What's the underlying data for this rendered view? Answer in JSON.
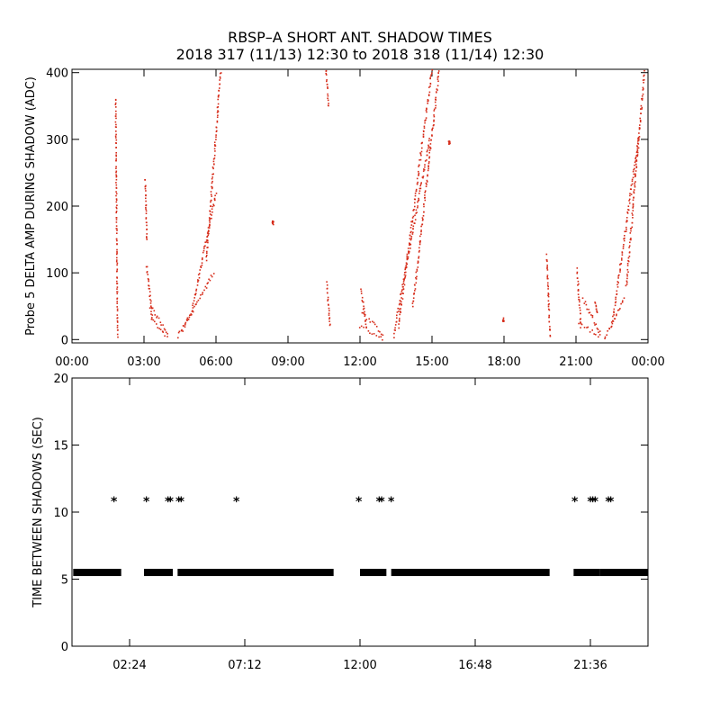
{
  "title_line1": "RBSP–A SHORT ANT. SHADOW TIMES",
  "title_line2": "2018 317 (11/13) 12:30 to 2018 318 (11/14) 12:30",
  "chart_data": [
    {
      "type": "scatter",
      "ylabel": "Probe 5 DELTA AMP DURING SHADOW (ADC)",
      "xlabel": "",
      "xlim": [
        0,
        24
      ],
      "ylim": [
        -5,
        405
      ],
      "xticks": [
        0,
        3,
        6,
        9,
        12,
        15,
        18,
        21,
        24
      ],
      "xtick_labels": [
        "00:00",
        "03:00",
        "06:00",
        "09:00",
        "12:00",
        "15:00",
        "18:00",
        "21:00",
        "00:00"
      ],
      "yticks": [
        0,
        100,
        200,
        300,
        400
      ],
      "ytick_labels": [
        "0",
        "100",
        "200",
        "300",
        "400"
      ],
      "color": "#d62c1a",
      "segments": [
        {
          "x0": 1.82,
          "x1": 1.9,
          "y0": 360,
          "y1": 5,
          "spread": 0.03
        },
        {
          "x0": 3.05,
          "x1": 3.12,
          "y0": 240,
          "y1": 150,
          "spread": 0.03
        },
        {
          "x0": 3.12,
          "x1": 3.35,
          "y0": 110,
          "y1": 30,
          "spread": 0.05
        },
        {
          "x0": 3.3,
          "x1": 3.95,
          "y0": 30,
          "y1": 5,
          "spread": 0.05
        },
        {
          "x0": 3.25,
          "x1": 4.0,
          "y0": 50,
          "y1": 10,
          "spread": 0.05
        },
        {
          "x0": 4.4,
          "x1": 5.0,
          "y0": 5,
          "y1": 40,
          "spread": 0.05
        },
        {
          "x0": 4.6,
          "x1": 5.9,
          "y0": 15,
          "y1": 100,
          "spread": 0.05
        },
        {
          "x0": 5.0,
          "x1": 6.0,
          "y0": 45,
          "y1": 220,
          "spread": 0.05
        },
        {
          "x0": 5.6,
          "x1": 6.2,
          "y0": 120,
          "y1": 405,
          "spread": 0.05
        },
        {
          "x0": 8.35,
          "x1": 8.4,
          "y0": 175,
          "y1": 175,
          "spread": 0.02
        },
        {
          "x0": 10.58,
          "x1": 10.7,
          "y0": 405,
          "y1": 350,
          "spread": 0.03
        },
        {
          "x0": 10.62,
          "x1": 10.75,
          "y0": 85,
          "y1": 20,
          "spread": 0.03
        },
        {
          "x0": 12.05,
          "x1": 12.25,
          "y0": 75,
          "y1": 20,
          "spread": 0.04
        },
        {
          "x0": 12.0,
          "x1": 12.95,
          "y0": 20,
          "y1": 2,
          "spread": 0.05
        },
        {
          "x0": 12.1,
          "x1": 12.95,
          "y0": 40,
          "y1": 8,
          "spread": 0.05
        },
        {
          "x0": 13.4,
          "x1": 14.9,
          "y0": 5,
          "y1": 300,
          "spread": 0.05
        },
        {
          "x0": 13.6,
          "x1": 15.0,
          "y0": 20,
          "y1": 405,
          "spread": 0.05
        },
        {
          "x0": 14.2,
          "x1": 15.3,
          "y0": 50,
          "y1": 405,
          "spread": 0.05
        },
        {
          "x0": 15.7,
          "x1": 15.75,
          "y0": 295,
          "y1": 295,
          "spread": 0.02
        },
        {
          "x0": 17.95,
          "x1": 18.0,
          "y0": 30,
          "y1": 30,
          "spread": 0.02
        },
        {
          "x0": 19.78,
          "x1": 19.92,
          "y0": 125,
          "y1": 5,
          "spread": 0.03
        },
        {
          "x0": 21.05,
          "x1": 21.2,
          "y0": 105,
          "y1": 20,
          "spread": 0.04
        },
        {
          "x0": 21.1,
          "x1": 22.0,
          "y0": 25,
          "y1": 5,
          "spread": 0.05
        },
        {
          "x0": 21.3,
          "x1": 22.0,
          "y0": 60,
          "y1": 10,
          "spread": 0.05
        },
        {
          "x0": 21.8,
          "x1": 21.9,
          "y0": 55,
          "y1": 40,
          "spread": 0.03
        },
        {
          "x0": 22.2,
          "x1": 23.0,
          "y0": 2,
          "y1": 60,
          "spread": 0.05
        },
        {
          "x0": 22.5,
          "x1": 23.6,
          "y0": 20,
          "y1": 300,
          "spread": 0.05
        },
        {
          "x0": 23.1,
          "x1": 23.85,
          "y0": 80,
          "y1": 400,
          "spread": 0.05
        }
      ]
    },
    {
      "type": "scatter",
      "ylabel": "TIME BETWEEN SHADOWS (SEC)",
      "xlabel": "",
      "xlim": [
        0,
        24
      ],
      "ylim": [
        0,
        20
      ],
      "xticks": [
        2.4,
        7.2,
        12.0,
        16.8,
        21.6
      ],
      "xtick_labels": [
        "02:24",
        "07:12",
        "12:00",
        "16:48",
        "21:36"
      ],
      "yticks": [
        0,
        5,
        10,
        15,
        20
      ],
      "ytick_labels": [
        "0",
        "5",
        "10",
        "15",
        "20"
      ],
      "color": "#000000",
      "marker": "*",
      "bands": [
        {
          "x0": 0.05,
          "x1": 2.05,
          "y": 5.5
        },
        {
          "x0": 3.0,
          "x1": 4.2,
          "y": 5.5
        },
        {
          "x0": 4.4,
          "x1": 10.9,
          "y": 5.5
        },
        {
          "x0": 12.0,
          "x1": 13.1,
          "y": 5.5
        },
        {
          "x0": 13.3,
          "x1": 19.9,
          "y": 5.5
        },
        {
          "x0": 20.9,
          "x1": 22.0,
          "y": 5.5
        },
        {
          "x0": 22.0,
          "x1": 24.0,
          "y": 5.5
        }
      ],
      "points": [
        {
          "x": 1.75,
          "y": 10.8
        },
        {
          "x": 3.1,
          "y": 10.8
        },
        {
          "x": 4.0,
          "y": 10.8
        },
        {
          "x": 4.1,
          "y": 10.8
        },
        {
          "x": 4.45,
          "y": 10.8
        },
        {
          "x": 4.55,
          "y": 10.8
        },
        {
          "x": 6.85,
          "y": 10.8
        },
        {
          "x": 11.95,
          "y": 10.8
        },
        {
          "x": 12.8,
          "y": 10.8
        },
        {
          "x": 12.9,
          "y": 10.8
        },
        {
          "x": 13.3,
          "y": 10.8
        },
        {
          "x": 20.95,
          "y": 10.8
        },
        {
          "x": 21.6,
          "y": 10.8
        },
        {
          "x": 21.7,
          "y": 10.8
        },
        {
          "x": 21.8,
          "y": 10.8
        },
        {
          "x": 22.35,
          "y": 10.8
        },
        {
          "x": 22.45,
          "y": 10.8
        }
      ]
    }
  ]
}
